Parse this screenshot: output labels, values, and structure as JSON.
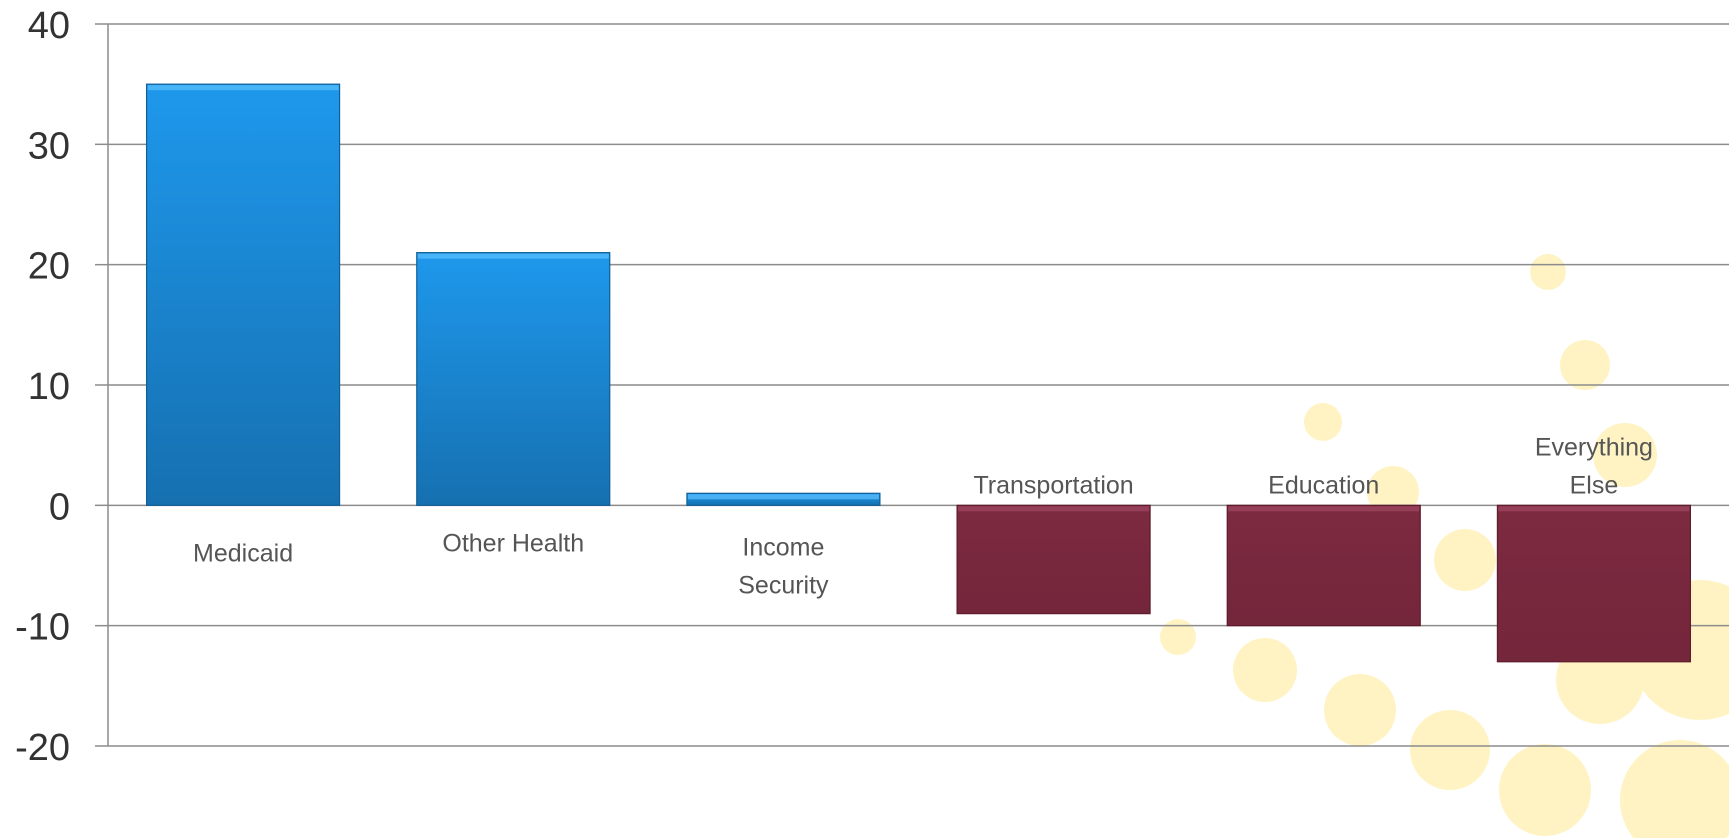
{
  "chart_data": {
    "type": "bar",
    "categories": [
      "Medicaid",
      "Other Health",
      "Income Security",
      "Transportation",
      "Education",
      "Everything Else"
    ],
    "category_label_lines": [
      [
        "Medicaid"
      ],
      [
        "Other Health"
      ],
      [
        "Income",
        "Security"
      ],
      [
        "Transportation"
      ],
      [
        "Education"
      ],
      [
        "Everything",
        "Else"
      ]
    ],
    "values": [
      35,
      21,
      1,
      -9,
      -10,
      -13
    ],
    "ylim": [
      -20,
      40
    ],
    "yticks": [
      "40",
      "30",
      "20",
      "10",
      "0",
      "-10",
      "-20"
    ],
    "ytick_values": [
      40,
      30,
      20,
      10,
      0,
      -10,
      -20
    ],
    "title": "",
    "xlabel": "",
    "ylabel": "",
    "grid": true,
    "legend": "none",
    "colors": {
      "positive_top": "#1e98ec",
      "positive_bottom": "#1670b0",
      "negative": "#78283d",
      "negative_edge": "#a04a62",
      "background_accent": "#fff3c4"
    }
  }
}
